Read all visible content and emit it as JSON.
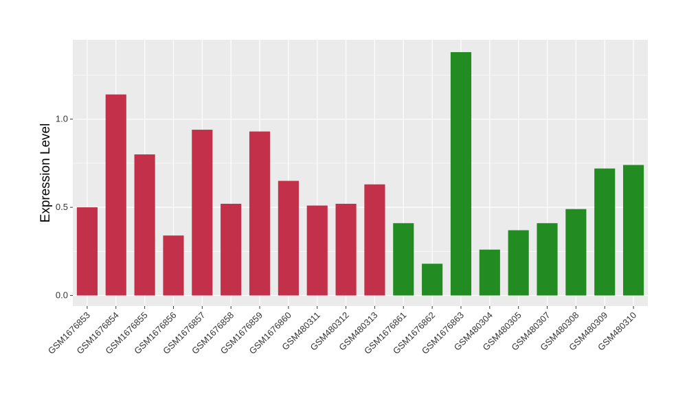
{
  "chart_data": {
    "type": "bar",
    "ylabel": "Expression Level",
    "xlabel": "",
    "ylim": [
      -0.06,
      1.45
    ],
    "yticks": [
      0.0,
      0.5,
      1.0
    ],
    "ytick_labels": [
      "0.0",
      "0.5",
      "1.0"
    ],
    "grid": true,
    "categories": [
      "GSM1676853",
      "GSM1676854",
      "GSM1676855",
      "GSM1676856",
      "GSM1676857",
      "GSM1676858",
      "GSM1676859",
      "GSM1676860",
      "GSM480311",
      "GSM480312",
      "GSM480313",
      "GSM1676861",
      "GSM1676862",
      "GSM1676863",
      "GSM480304",
      "GSM480305",
      "GSM480307",
      "GSM480308",
      "GSM480309",
      "GSM480310"
    ],
    "values": [
      0.5,
      1.14,
      0.8,
      0.34,
      0.94,
      0.52,
      0.93,
      0.65,
      0.51,
      0.52,
      0.63,
      0.41,
      0.18,
      1.38,
      0.26,
      0.37,
      0.41,
      0.49,
      0.72,
      0.74
    ],
    "groups": [
      "red",
      "red",
      "red",
      "red",
      "red",
      "red",
      "red",
      "red",
      "red",
      "red",
      "red",
      "green",
      "green",
      "green",
      "green",
      "green",
      "green",
      "green",
      "green",
      "green"
    ],
    "colors": {
      "red": "#c3304a",
      "green": "#228b22",
      "panel": "#ebebeb",
      "grid": "#ffffff"
    }
  }
}
